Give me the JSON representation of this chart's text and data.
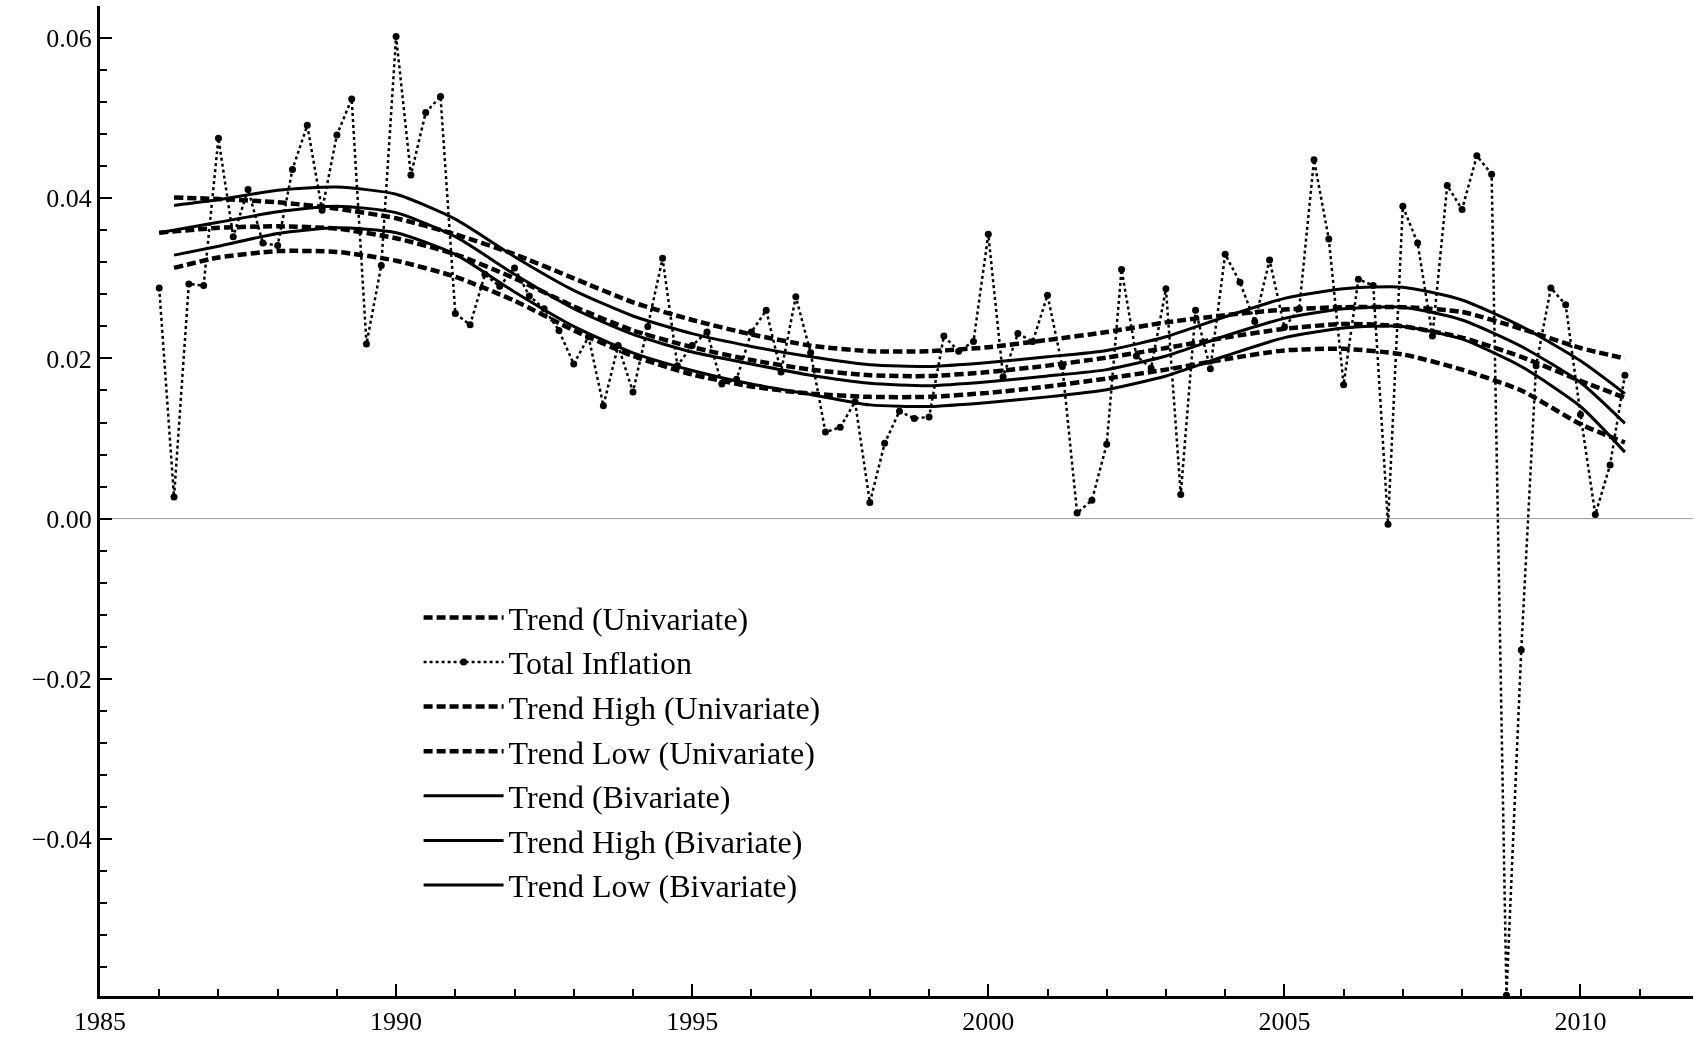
{
  "chart_data": {
    "type": "line",
    "xlim": [
      1985,
      2011.9
    ],
    "xticks": [
      1985,
      1990,
      1995,
      2000,
      2005,
      2010
    ],
    "ylim": [
      -0.0596,
      0.064
    ],
    "yticks": [
      {
        "value": -0.04,
        "label": "−0.04"
      },
      {
        "value": -0.02,
        "label": "−0.02"
      },
      {
        "value": 0,
        "label": "0.00"
      },
      0.02,
      0.04,
      0.06
    ],
    "grid": false,
    "legend": "bottom left",
    "ref_lines": [
      {
        "axis": "y",
        "value": 0,
        "color": "#999999"
      }
    ],
    "series": [
      {
        "name": "Trend (Univariate)",
        "color": "#000000",
        "line_style": "dashed",
        "marker": "none",
        "x": [
          1986.0,
          1987,
          1988,
          1989,
          1990,
          1991,
          1992,
          1993,
          1994,
          1995,
          1996,
          1997,
          1998,
          1999,
          2000,
          2001,
          2002,
          2003,
          2004,
          2005,
          2006,
          2007,
          2008,
          2009,
          2010,
          2010.75
        ],
        "values": [
          0.0357,
          0.0363,
          0.0365,
          0.0362,
          0.035,
          0.033,
          0.03,
          0.0265,
          0.0235,
          0.0214,
          0.0198,
          0.0186,
          0.0179,
          0.0178,
          0.0183,
          0.0191,
          0.0201,
          0.0213,
          0.0226,
          0.0237,
          0.0243,
          0.024,
          0.0226,
          0.0202,
          0.0172,
          0.0151
        ]
      },
      {
        "name": "Total Inflation",
        "color": "#000000",
        "line_style": "dotted",
        "marker": "circle",
        "x": [
          1986.0,
          1986.25,
          1986.5,
          1986.75,
          1987.0,
          1987.25,
          1987.5,
          1987.75,
          1988.0,
          1988.25,
          1988.5,
          1988.75,
          1989.0,
          1989.25,
          1989.5,
          1989.75,
          1990.0,
          1990.25,
          1990.5,
          1990.75,
          1991.0,
          1991.25,
          1991.5,
          1991.75,
          1992.0,
          1992.25,
          1992.5,
          1992.75,
          1993.0,
          1993.25,
          1993.5,
          1993.75,
          1994.0,
          1994.25,
          1994.5,
          1994.75,
          1995.0,
          1995.25,
          1995.5,
          1995.75,
          1996.0,
          1996.25,
          1996.5,
          1996.75,
          1997.0,
          1997.25,
          1997.5,
          1997.75,
          1998.0,
          1998.25,
          1998.5,
          1998.75,
          1999.0,
          1999.25,
          1999.5,
          1999.75,
          2000.0,
          2000.25,
          2000.5,
          2000.75,
          2001.0,
          2001.25,
          2001.5,
          2001.75,
          2002.0,
          2002.25,
          2002.5,
          2002.75,
          2003.0,
          2003.25,
          2003.5,
          2003.75,
          2004.0,
          2004.25,
          2004.5,
          2004.75,
          2005.0,
          2005.25,
          2005.5,
          2005.75,
          2006.0,
          2006.25,
          2006.5,
          2006.75,
          2007.0,
          2007.25,
          2007.5,
          2007.75,
          2008.0,
          2008.25,
          2008.5,
          2008.75,
          2009.0,
          2009.25,
          2009.5,
          2009.75,
          2010.0,
          2010.25,
          2010.5,
          2010.75
        ],
        "values": [
          0.0288,
          0.0027,
          0.0293,
          0.0291,
          0.0475,
          0.0352,
          0.0411,
          0.0344,
          0.0341,
          0.0436,
          0.0491,
          0.0385,
          0.0479,
          0.0524,
          0.0218,
          0.0316,
          0.0602,
          0.0429,
          0.0507,
          0.0527,
          0.0256,
          0.0242,
          0.0305,
          0.029,
          0.0313,
          0.0278,
          0.0262,
          0.0235,
          0.0193,
          0.0227,
          0.0141,
          0.0216,
          0.0158,
          0.024,
          0.0325,
          0.0191,
          0.0216,
          0.0233,
          0.0168,
          0.0174,
          0.0233,
          0.026,
          0.0183,
          0.0277,
          0.0207,
          0.0108,
          0.0114,
          0.0146,
          0.002,
          0.0094,
          0.0134,
          0.0125,
          0.0127,
          0.0228,
          0.0209,
          0.0221,
          0.0355,
          0.0177,
          0.0231,
          0.0221,
          0.0279,
          0.019,
          0.0007,
          0.0023,
          0.0093,
          0.0311,
          0.0203,
          0.0188,
          0.0287,
          0.003,
          0.026,
          0.0187,
          0.033,
          0.0295,
          0.0246,
          0.0323,
          0.0239,
          0.0262,
          0.0448,
          0.0349,
          0.0167,
          0.0299,
          0.0291,
          -0.0007,
          0.039,
          0.0344,
          0.0228,
          0.0416,
          0.0386,
          0.0453,
          0.043,
          -0.0595,
          -0.0164,
          0.0191,
          0.0288,
          0.0267,
          0.013,
          0.0005,
          0.0067,
          0.0179
        ]
      },
      {
        "name": "Trend High (Univariate)",
        "color": "#000000",
        "line_style": "dashed",
        "marker": "none",
        "x": [
          1986.25,
          1987,
          1988,
          1989,
          1990,
          1991,
          1992,
          1993,
          1994,
          1995,
          1996,
          1997,
          1998,
          1999,
          2000,
          2001,
          2002,
          2003,
          2004,
          2005,
          2006,
          2007,
          2008,
          2009,
          2010,
          2010.75
        ],
        "values": [
          0.0401,
          0.0399,
          0.0395,
          0.0387,
          0.0375,
          0.0355,
          0.033,
          0.03,
          0.027,
          0.0248,
          0.023,
          0.0216,
          0.0209,
          0.0209,
          0.0214,
          0.0223,
          0.0233,
          0.0245,
          0.0254,
          0.0261,
          0.0264,
          0.0264,
          0.0258,
          0.0237,
          0.0213,
          0.02
        ]
      },
      {
        "name": "Trend Low (Univariate)",
        "color": "#000000",
        "line_style": "dashed",
        "marker": "none",
        "x": [
          1986.25,
          1987,
          1988,
          1989,
          1990,
          1991,
          1992,
          1993,
          1994,
          1995,
          1996,
          1997,
          1998,
          1999,
          2000,
          2001,
          2002,
          2003,
          2004,
          2005,
          2006,
          2007,
          2008,
          2009,
          2010,
          2010.75
        ],
        "values": [
          0.0313,
          0.0326,
          0.0334,
          0.0333,
          0.0322,
          0.0302,
          0.0272,
          0.0235,
          0.0203,
          0.018,
          0.0165,
          0.0156,
          0.0152,
          0.0152,
          0.0157,
          0.0165,
          0.0175,
          0.0186,
          0.0199,
          0.021,
          0.0212,
          0.0205,
          0.0186,
          0.016,
          0.0118,
          0.0095
        ]
      },
      {
        "name": "Trend (Bivariate)",
        "color": "#000000",
        "line_style": "solid",
        "marker": "none",
        "x": [
          1986.0,
          1987,
          1988,
          1989,
          1990,
          1991,
          1992,
          1993,
          1994,
          1995,
          1996,
          1997,
          1998,
          1999,
          2000,
          2001,
          2002,
          2003,
          2004,
          2005,
          2006,
          2007,
          2008,
          2009,
          2010,
          2010.75
        ],
        "values": [
          0.0357,
          0.037,
          0.0383,
          0.039,
          0.0382,
          0.0352,
          0.0305,
          0.0262,
          0.023,
          0.0208,
          0.0193,
          0.0179,
          0.0169,
          0.0166,
          0.0171,
          0.0178,
          0.0186,
          0.0203,
          0.0228,
          0.025,
          0.0262,
          0.0264,
          0.0248,
          0.0215,
          0.017,
          0.0119
        ]
      },
      {
        "name": "Trend High (Bivariate)",
        "color": "#000000",
        "line_style": "solid",
        "marker": "none",
        "x": [
          1986.25,
          1987,
          1988,
          1989,
          1990,
          1991,
          1992,
          1993,
          1994,
          1995,
          1996,
          1997,
          1998,
          1999,
          2000,
          2001,
          2002,
          2003,
          2004,
          2005,
          2006,
          2007,
          2008,
          2009,
          2010,
          2010.75
        ],
        "values": [
          0.0391,
          0.0398,
          0.041,
          0.0414,
          0.0405,
          0.0374,
          0.0327,
          0.0285,
          0.0253,
          0.0231,
          0.0215,
          0.0202,
          0.0192,
          0.019,
          0.0195,
          0.0202,
          0.021,
          0.0227,
          0.0252,
          0.0275,
          0.0287,
          0.0289,
          0.0273,
          0.024,
          0.0197,
          0.0156
        ]
      },
      {
        "name": "Trend Low (Bivariate)",
        "color": "#000000",
        "line_style": "solid",
        "marker": "none",
        "x": [
          1986.25,
          1987,
          1988,
          1989,
          1990,
          1991,
          1992,
          1993,
          1994,
          1995,
          1996,
          1997,
          1998,
          1999,
          2000,
          2001,
          2002,
          2003,
          2004,
          2005,
          2006,
          2007,
          2008,
          2009,
          2010,
          2010.75
        ],
        "values": [
          0.0329,
          0.034,
          0.0356,
          0.0363,
          0.0357,
          0.033,
          0.0283,
          0.024,
          0.0207,
          0.0185,
          0.0168,
          0.0155,
          0.0142,
          0.014,
          0.0145,
          0.0152,
          0.0161,
          0.0178,
          0.0203,
          0.0226,
          0.0238,
          0.024,
          0.0224,
          0.019,
          0.014,
          0.0083
        ]
      }
    ]
  }
}
